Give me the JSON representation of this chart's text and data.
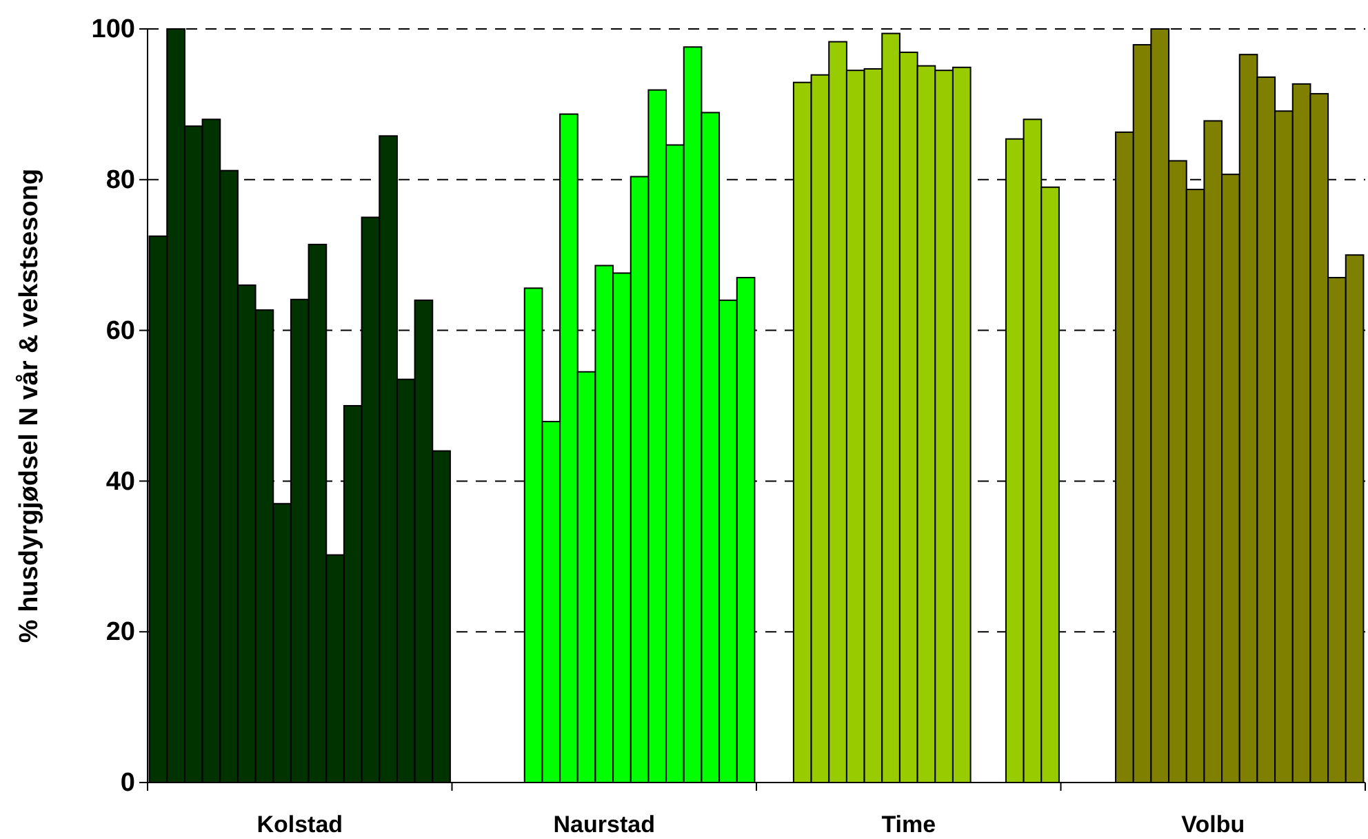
{
  "chart_data": {
    "type": "bar",
    "ylabel": "% husdyrgjødsel N vår & vekstsesong",
    "categories": [
      "Kolstad",
      "Naurstad",
      "Time",
      "Volbu"
    ],
    "ylim": [
      0,
      100
    ],
    "yticks": [
      0,
      20,
      40,
      60,
      80,
      100
    ],
    "grid": "y",
    "series": [
      {
        "colors": [
          "#003300",
          null,
          null,
          null
        ],
        "values": [
          72.5,
          null,
          null,
          null
        ]
      },
      {
        "colors": [
          "#003300",
          null,
          null,
          null
        ],
        "values": [
          100,
          null,
          null,
          null
        ]
      },
      {
        "colors": [
          "#003300",
          null,
          "#99cc00",
          null
        ],
        "values": [
          87.1,
          null,
          92.9,
          null
        ]
      },
      {
        "colors": [
          "#003300",
          null,
          "#99cc00",
          "#808000"
        ],
        "values": [
          88.0,
          null,
          93.9,
          86.3
        ]
      },
      {
        "colors": [
          "#003300",
          "#00ff00",
          "#99cc00",
          "#808000"
        ],
        "values": [
          81.2,
          65.6,
          98.3,
          97.9
        ]
      },
      {
        "colors": [
          "#003300",
          "#00ff00",
          "#99cc00",
          "#808000"
        ],
        "values": [
          66.0,
          47.9,
          94.5,
          100
        ]
      },
      {
        "colors": [
          "#003300",
          "#00ff00",
          "#99cc00",
          "#808000"
        ],
        "values": [
          62.7,
          88.7,
          94.7,
          82.5
        ]
      },
      {
        "colors": [
          "#003300",
          "#00ff00",
          "#99cc00",
          "#808000"
        ],
        "values": [
          37.0,
          54.5,
          99.4,
          78.7
        ]
      },
      {
        "colors": [
          "#003300",
          "#00ff00",
          "#99cc00",
          "#808000"
        ],
        "values": [
          64.1,
          68.6,
          96.9,
          87.8
        ]
      },
      {
        "colors": [
          "#003300",
          "#00ff00",
          "#99cc00",
          "#808000"
        ],
        "values": [
          71.4,
          67.6,
          95.1,
          80.7
        ]
      },
      {
        "colors": [
          "#003300",
          "#00ff00",
          "#99cc00",
          "#808000"
        ],
        "values": [
          30.2,
          80.4,
          94.5,
          96.6
        ]
      },
      {
        "colors": [
          "#003300",
          "#00ff00",
          "#99cc00",
          "#808000"
        ],
        "values": [
          50.0,
          91.9,
          94.9,
          93.6
        ]
      },
      {
        "colors": [
          "#003300",
          "#00ff00",
          null,
          "#808000"
        ],
        "values": [
          75.0,
          84.6,
          null,
          89.1
        ]
      },
      {
        "colors": [
          "#003300",
          "#00ff00",
          null,
          "#808000"
        ],
        "values": [
          85.8,
          97.6,
          null,
          92.7
        ]
      },
      {
        "colors": [
          "#003300",
          "#00ff00",
          "#99cc00",
          "#808000"
        ],
        "values": [
          53.5,
          88.9,
          85.4,
          91.4
        ]
      },
      {
        "colors": [
          "#003300",
          "#00ff00",
          "#99cc00",
          "#808000"
        ],
        "values": [
          64.0,
          64.0,
          88.0,
          67.0
        ]
      },
      {
        "colors": [
          "#003300",
          "#00ff00",
          "#99cc00",
          "#808000"
        ],
        "values": [
          44.0,
          67.0,
          79.0,
          70.0
        ]
      }
    ]
  }
}
